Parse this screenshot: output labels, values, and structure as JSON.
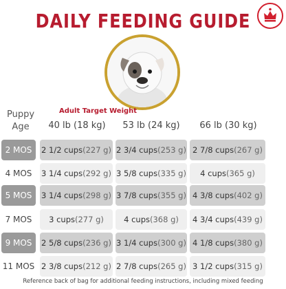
{
  "title": "DAILY FEEDING GUIDE",
  "row_header_label": [
    "Puppy",
    "Age"
  ],
  "adult_weight_label": "Adult Target Weight",
  "columns": [
    "40 lb (18 kg)",
    "53 lb (24 kg)",
    "66 lb (30 kg)"
  ],
  "rows": [
    {
      "age": "2 MOS",
      "cells": [
        [
          "2 1/2 cups",
          " (227 g)"
        ],
        [
          "2 3/4 cups",
          " (253 g)"
        ],
        [
          "2 7/8 cups",
          " (267 g)"
        ]
      ]
    },
    {
      "age": "4 MOS",
      "cells": [
        [
          "3 1/4 cups",
          " (292 g)"
        ],
        [
          "3 5/8 cups",
          " (335 g)"
        ],
        [
          "4 cups",
          " (365 g)"
        ]
      ]
    },
    {
      "age": "5 MOS",
      "cells": [
        [
          "3 1/4 cups",
          " (298 g)"
        ],
        [
          "3 7/8 cups",
          " (355 g)"
        ],
        [
          "4 3/8 cups",
          " (402 g)"
        ]
      ]
    },
    {
      "age": "7 MOS",
      "cells": [
        [
          "3 cups",
          " (277 g)"
        ],
        [
          "4 cups",
          " (368 g)"
        ],
        [
          "4 3/4 cups",
          " (439 g)"
        ]
      ]
    },
    {
      "age": "9 MOS",
      "cells": [
        [
          "2 5/8 cups",
          " (236 g)"
        ],
        [
          "3 1/4 cups",
          " (300 g)"
        ],
        [
          "4 1/8 cups",
          " (380 g)"
        ]
      ]
    },
    {
      "age": "11 MOS",
      "cells": [
        [
          "2 3/8 cups",
          " (212 g)"
        ],
        [
          "2 7/8 cups",
          " (265 g)"
        ],
        [
          "3 1/2 cups",
          " (315 g)"
        ]
      ]
    }
  ],
  "footer": "Reference back of bag for additional feeding instructions, including mixed feeding",
  "colors": {
    "title": "#b71c2f",
    "ring": "#c9a130",
    "dark_row": "#cfcfcf",
    "light_row": "#efefef",
    "age_dark": "#9a9a9a"
  },
  "icons": {
    "logo": "crown-logo-icon",
    "portrait": "bulldog-puppy-photo"
  }
}
